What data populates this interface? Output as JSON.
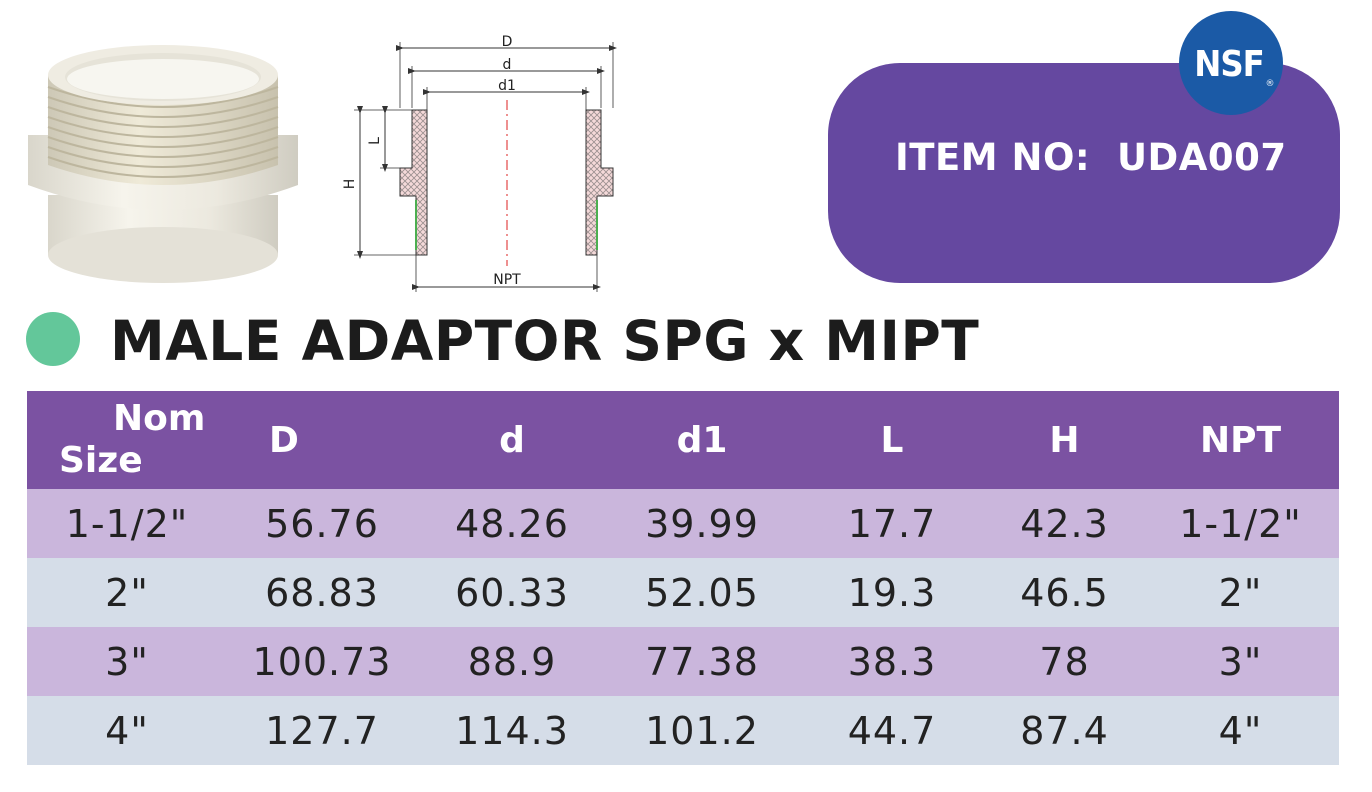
{
  "item": {
    "label": "ITEM NO:",
    "number": "UDA007"
  },
  "certification": {
    "logo_text": "NSF",
    "mark": "®"
  },
  "product": {
    "title": "MALE ADAPTOR SPG x MIPT"
  },
  "drawing": {
    "labels": {
      "D": "D",
      "d": "d",
      "d1": "d1",
      "L": "L",
      "H": "H",
      "NPT": "NPT"
    }
  },
  "table": {
    "headers": {
      "nom_line1": "Nom",
      "nom_line2": "Size",
      "D": "D",
      "d": "d",
      "d1": "d1",
      "L": "L",
      "H": "H",
      "NPT": "NPT"
    },
    "rows": [
      [
        "1-1/2\"",
        "56.76",
        "48.26",
        "39.99",
        "17.7",
        "42.3",
        "1-1/2\""
      ],
      [
        "2\"",
        "68.83",
        "60.33",
        "52.05",
        "19.3",
        "46.5",
        "2\""
      ],
      [
        "3\"",
        "100.73",
        "88.9",
        "77.38",
        "38.3",
        "78",
        "3\""
      ],
      [
        "4\"",
        "127.7",
        "114.3",
        "101.2",
        "44.7",
        "87.4",
        "4\""
      ]
    ]
  },
  "colors": {
    "purple_box": "#6548a0",
    "header_purple": "#7b52a2",
    "row_lavender": "#cab6dc",
    "row_blue_grey": "#d5dde8",
    "green_dot": "#63c79a",
    "nsf_blue": "#1b5aa6"
  }
}
